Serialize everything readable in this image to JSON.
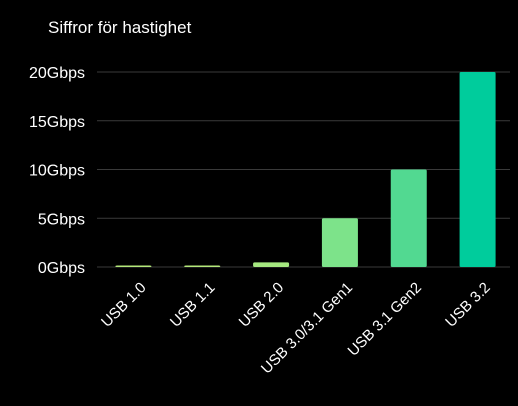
{
  "chart_data": {
    "type": "bar",
    "title": "Siffror för hastighet",
    "xlabel": "",
    "ylabel": "",
    "categories": [
      "USB 1.0",
      "USB 1.1",
      "USB 2.0",
      "USB 3.0/3.1 Gen1",
      "USB 3.1 Gen2",
      "USB 3.2"
    ],
    "values": [
      0.0015,
      0.012,
      0.48,
      5,
      10,
      20
    ],
    "y_ticks": [
      {
        "value": 0,
        "label": "0Gbps"
      },
      {
        "value": 5,
        "label": "5Gbps"
      },
      {
        "value": 10,
        "label": "10Gbps"
      },
      {
        "value": 15,
        "label": "15Gbps"
      },
      {
        "value": 20,
        "label": "20Gbps"
      }
    ],
    "ylim": [
      0,
      20
    ],
    "grid": true,
    "legend": "none",
    "colors": [
      "#b4e87a",
      "#b4e87a",
      "#a6e880",
      "#7de38a",
      "#52d991",
      "#00cc9c"
    ],
    "background": "#000000"
  }
}
